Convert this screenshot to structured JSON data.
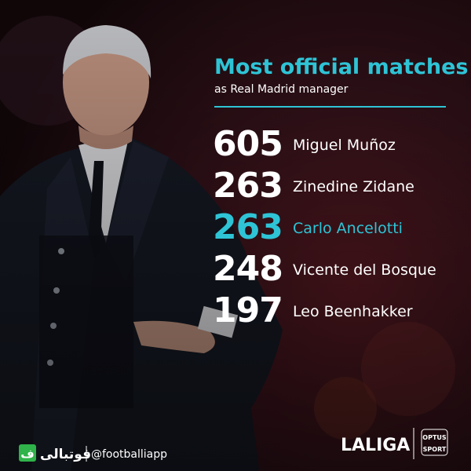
{
  "header": {
    "title": "Most official matches",
    "subtitle": "as Real Madrid manager"
  },
  "accent_color": "#2ec4d6",
  "rows": [
    {
      "value": 605,
      "name": "Miguel Muñoz"
    },
    {
      "value": 263,
      "name": "Zinedine Zidane"
    },
    {
      "value": 263,
      "name": "Carlo Ancelotti",
      "highlight": true
    },
    {
      "value": 248,
      "name": "Vicente del Bosque"
    },
    {
      "value": 197,
      "name": "Leo Beenhakker"
    }
  ],
  "footer": {
    "logo_letter": "ف",
    "brand": "فوتبالی",
    "handle": "@footballiapp",
    "league": "LALIGA",
    "partner_top": "OPTUS",
    "partner_bottom": "SPORT"
  }
}
